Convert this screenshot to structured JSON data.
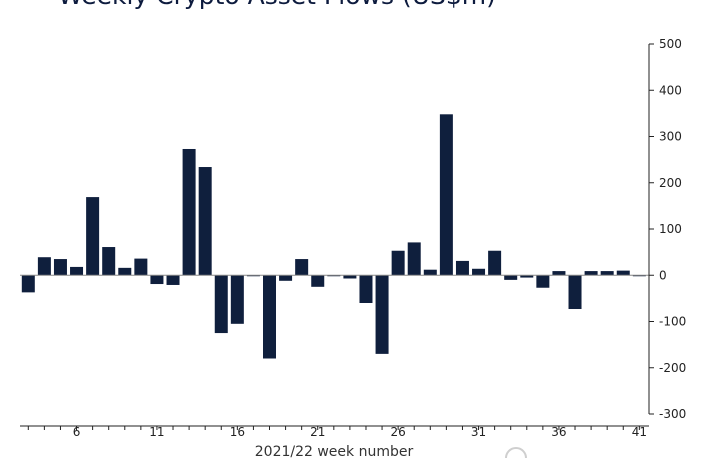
{
  "chart_data": {
    "type": "bar",
    "title": "Weekly Crypto Asset Flows (US$m)",
    "xlabel": "2021/22 week number",
    "ylabel": "",
    "ylim": [
      -300,
      500
    ],
    "y_ticks": [
      500,
      400,
      300,
      200,
      100,
      0,
      -100,
      -200,
      -300
    ],
    "x_ticks": [
      6,
      11,
      16,
      21,
      26,
      31,
      36,
      41
    ],
    "grid": false,
    "legend": "none",
    "colors": {
      "bar": "#0f1f3d",
      "axis": "#222222"
    },
    "x": [
      3,
      4,
      5,
      6,
      7,
      8,
      9,
      10,
      11,
      12,
      13,
      14,
      15,
      16,
      17,
      18,
      19,
      20,
      21,
      22,
      23,
      24,
      25,
      26,
      27,
      28,
      29,
      30,
      31,
      32,
      33,
      34,
      35,
      36,
      37,
      38,
      39,
      40,
      41
    ],
    "values": [
      -37,
      39,
      35,
      18,
      169,
      61,
      16,
      36,
      -19,
      -21,
      273,
      234,
      -125,
      -105,
      -2,
      -180,
      -12,
      35,
      -25,
      -2,
      -7,
      -60,
      -170,
      53,
      71,
      12,
      348,
      31,
      14,
      53,
      -10,
      -5,
      -27,
      9,
      -73,
      9,
      9,
      10,
      -2
    ]
  }
}
